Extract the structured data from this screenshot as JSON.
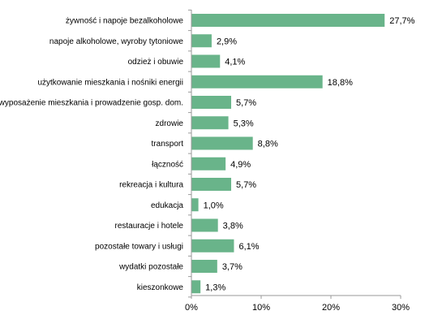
{
  "colors": {
    "bar": "#69b48a",
    "axis": "#9a9a9a",
    "grid": "#d9d9d9"
  },
  "chart_data": {
    "type": "bar",
    "orientation": "horizontal",
    "grid": false,
    "legend": "none",
    "xlim": [
      0,
      30
    ],
    "categories": [
      "żywność i napoje bezalkoholowe",
      "napoje alkoholowe, wyroby tytoniowe",
      "odzież i obuwie",
      "użytkowanie mieszkania i nośniki energii",
      "wyposażenie mieszkania i prowadzenie gosp. dom.",
      "zdrowie",
      "transport",
      "łączność",
      "rekreacja i kultura",
      "edukacja",
      "restauracje i hotele",
      "pozostałe towary i usługi",
      "wydatki pozostałe",
      "kieszonkowe"
    ],
    "values": [
      27.7,
      2.9,
      4.1,
      18.8,
      5.7,
      5.3,
      8.8,
      4.9,
      5.7,
      1.0,
      3.8,
      6.1,
      3.7,
      1.3
    ],
    "value_labels": [
      "27,7%",
      "2,9%",
      "4,1%",
      "18,8%",
      "5,7%",
      "5,3%",
      "8,8%",
      "4,9%",
      "5,7%",
      "1,0%",
      "3,8%",
      "6,1%",
      "3,7%",
      "1,3%"
    ],
    "ticks": [
      0,
      10,
      20,
      30
    ],
    "tick_labels": [
      "0%",
      "10%",
      "20%",
      "30%"
    ]
  }
}
